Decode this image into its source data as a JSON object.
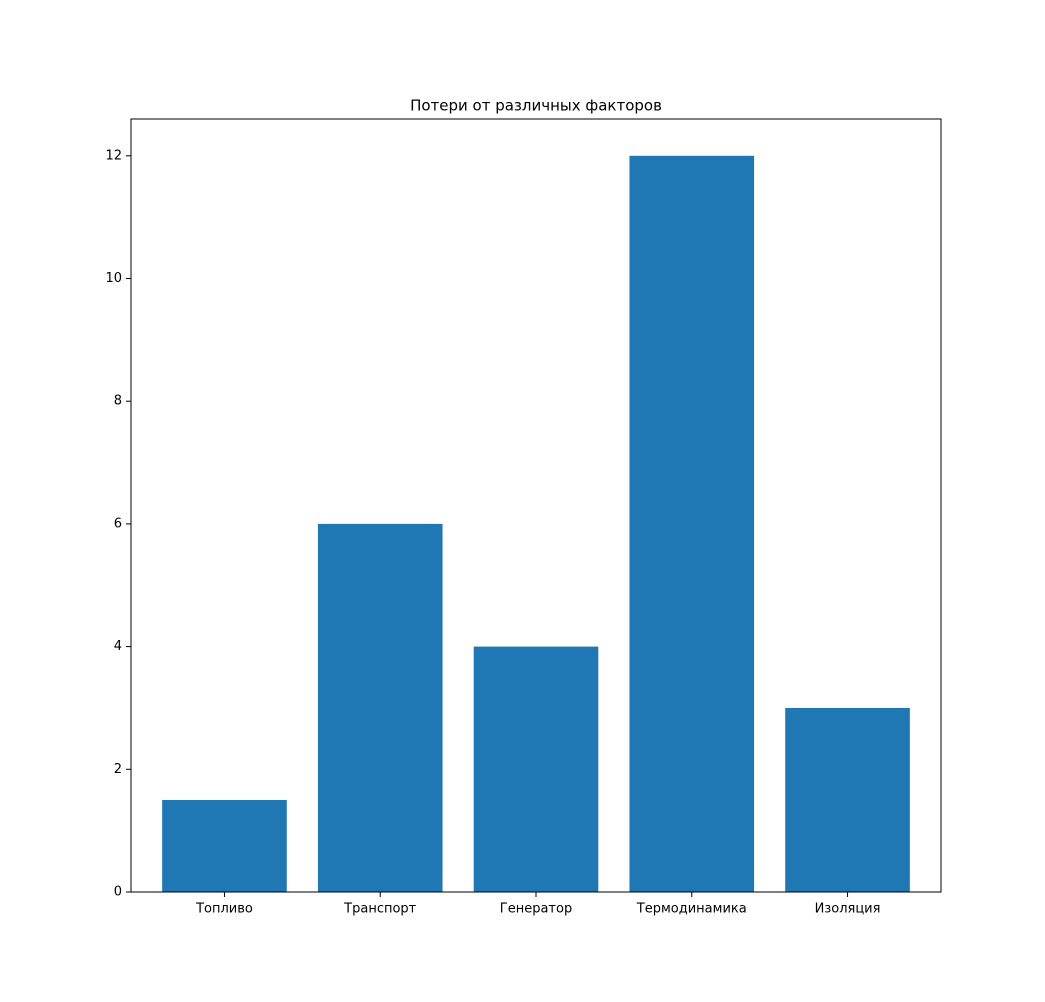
{
  "chart_data": {
    "type": "bar",
    "title": "Потери от различных факторов",
    "categories": [
      "Топливо",
      "Транспорт",
      "Генератор",
      "Термодинамика",
      "Изоляция"
    ],
    "values": [
      1.5,
      6,
      4,
      12,
      3
    ],
    "color": "#1f77b4",
    "ylim": [
      0,
      12.6
    ],
    "yticks": [
      0,
      2,
      4,
      6,
      8,
      10,
      12
    ],
    "grid": false
  }
}
